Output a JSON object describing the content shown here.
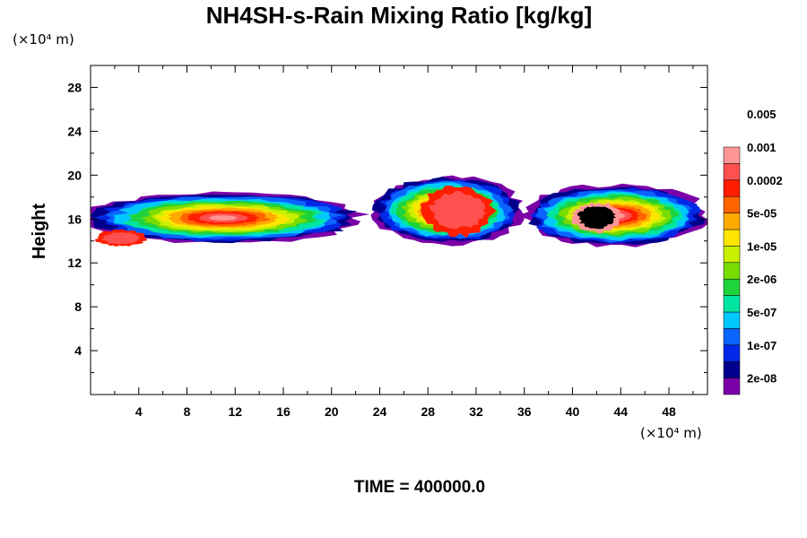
{
  "chart_data": {
    "type": "heatmap",
    "title": "NH4SH-s-Rain Mixing Ratio [kg/kg]",
    "ylabel": "Height",
    "x_unit": "(×10⁴ m)",
    "y_unit": "(×10⁴ m)",
    "xlim": [
      0,
      51.2
    ],
    "ylim": [
      0,
      30
    ],
    "x_ticks": [
      4,
      8,
      12,
      16,
      20,
      24,
      28,
      32,
      36,
      40,
      44,
      48
    ],
    "y_ticks": [
      4,
      8,
      12,
      16,
      20,
      24,
      28
    ],
    "colorbar": {
      "labels": [
        "2e-08",
        "1e-07",
        "5e-07",
        "2e-06",
        "1e-05",
        "5e-05",
        "0.0002",
        "0.001",
        "0.005"
      ],
      "colors": [
        "#7b00a8",
        "#00008c",
        "#0028e6",
        "#0a64ff",
        "#00c8ff",
        "#00e6a0",
        "#1ed23c",
        "#78dc00",
        "#c8f000",
        "#ffe600",
        "#ffaa00",
        "#ff6400",
        "#ff1e00",
        "#ff5050",
        "#ff9696"
      ]
    },
    "regions": [
      {
        "x_range": [
          0,
          22.3
        ],
        "y_range": [
          13.0,
          19.3
        ],
        "peak_level": "0.0002",
        "peak_region": [
          0.5,
          4.5,
          13.5,
          15.0
        ]
      },
      {
        "x_range": [
          23.4,
          35.8
        ],
        "y_range": [
          13.5,
          20.2
        ],
        "peak_level": "0.0002",
        "peak_region": [
          27.5,
          33.5,
          14.5,
          19.0
        ]
      },
      {
        "x_range": [
          36.0,
          51.2
        ],
        "y_range": [
          13.2,
          19.5
        ],
        "peak_level": "0.001",
        "peak_region": [
          40.0,
          44.0,
          14.8,
          17.5
        ]
      }
    ]
  },
  "footer": {
    "time_label": "TIME = 400000.0"
  }
}
